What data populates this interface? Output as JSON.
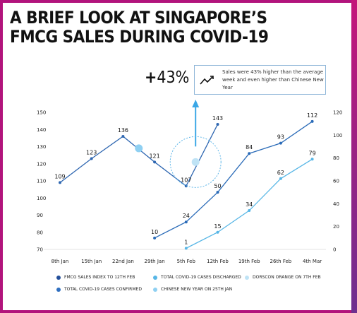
{
  "title": "A BRIEF LOOK AT SINGAPORE’S FMCG SALES DURING COVID-19",
  "headline_stat": {
    "sign": "+",
    "value": "43%"
  },
  "callout": {
    "text": "Sales were 43% higher than the average week and even higher than Chinese New Year"
  },
  "colors": {
    "frame": "#b2147c",
    "fmcg": "#2f67b1",
    "confirmed": "#2a6bb8",
    "discharged": "#57b6e6",
    "cny_marker": "#8fd0f2",
    "orange_marker": "#bfe3f5"
  },
  "chart_data": {
    "type": "line",
    "categories": [
      "8th Jan",
      "15th Jan",
      "22nd Jan",
      "29th Jan",
      "5th Feb",
      "12th Feb",
      "19th Feb",
      "26th Feb",
      "4th Mar"
    ],
    "left_axis": {
      "ticks": [
        70,
        80,
        90,
        100,
        110,
        120,
        130,
        140,
        150
      ],
      "ylim": [
        70,
        150
      ]
    },
    "right_axis": {
      "ticks": [
        0,
        20,
        40,
        60,
        80,
        100,
        120
      ],
      "ylim": [
        0,
        120
      ]
    },
    "series": [
      {
        "name": "FMCG SALES INDEX TO 12TH FEB",
        "axis": "left",
        "values": [
          109,
          123,
          136,
          121,
          107,
          143,
          null,
          null,
          null
        ],
        "labels": [
          "109",
          "123",
          "136",
          "121",
          "107",
          "143",
          "",
          "",
          ""
        ]
      },
      {
        "name": "TOTAL COVID-19 CASES CONFIRMED",
        "axis": "right",
        "values": [
          null,
          null,
          null,
          10,
          24,
          50,
          84,
          93,
          112
        ],
        "labels": [
          "",
          "",
          "",
          "10",
          "24",
          "50",
          "84",
          "93",
          "112"
        ]
      },
      {
        "name": "TOTAL COVID-19 CASES DISCHARGED",
        "axis": "right",
        "values": [
          null,
          null,
          null,
          null,
          1,
          15,
          34,
          62,
          79
        ],
        "labels": [
          "",
          "",
          "",
          "",
          "1",
          "15",
          "34",
          "62",
          "79"
        ]
      }
    ],
    "markers": [
      {
        "name": "CHINESE NEW YEAR ON 25TH JAN",
        "x": 2.5,
        "axis": "left",
        "y": 129
      },
      {
        "name": "DORSCON ORANGE ON 7TH FEB",
        "x": 4.3,
        "axis": "left",
        "y": 121
      }
    ]
  },
  "legend": [
    {
      "label": "FMCG SALES INDEX TO 12TH FEB",
      "color": "#234f9a"
    },
    {
      "label": "TOTAL COVID-19 CASES DISCHARGED",
      "color": "#57b6e6"
    },
    {
      "label": "DORSCON ORANGE ON 7TH FEB",
      "color": "#bfe3f5"
    },
    {
      "label": "TOTAL COVID-19 CASES CONFIRMED",
      "color": "#2f6fc0"
    },
    {
      "label": "CHINESE NEW YEAR ON 25TH JAN",
      "color": "#8fd0f2"
    }
  ]
}
